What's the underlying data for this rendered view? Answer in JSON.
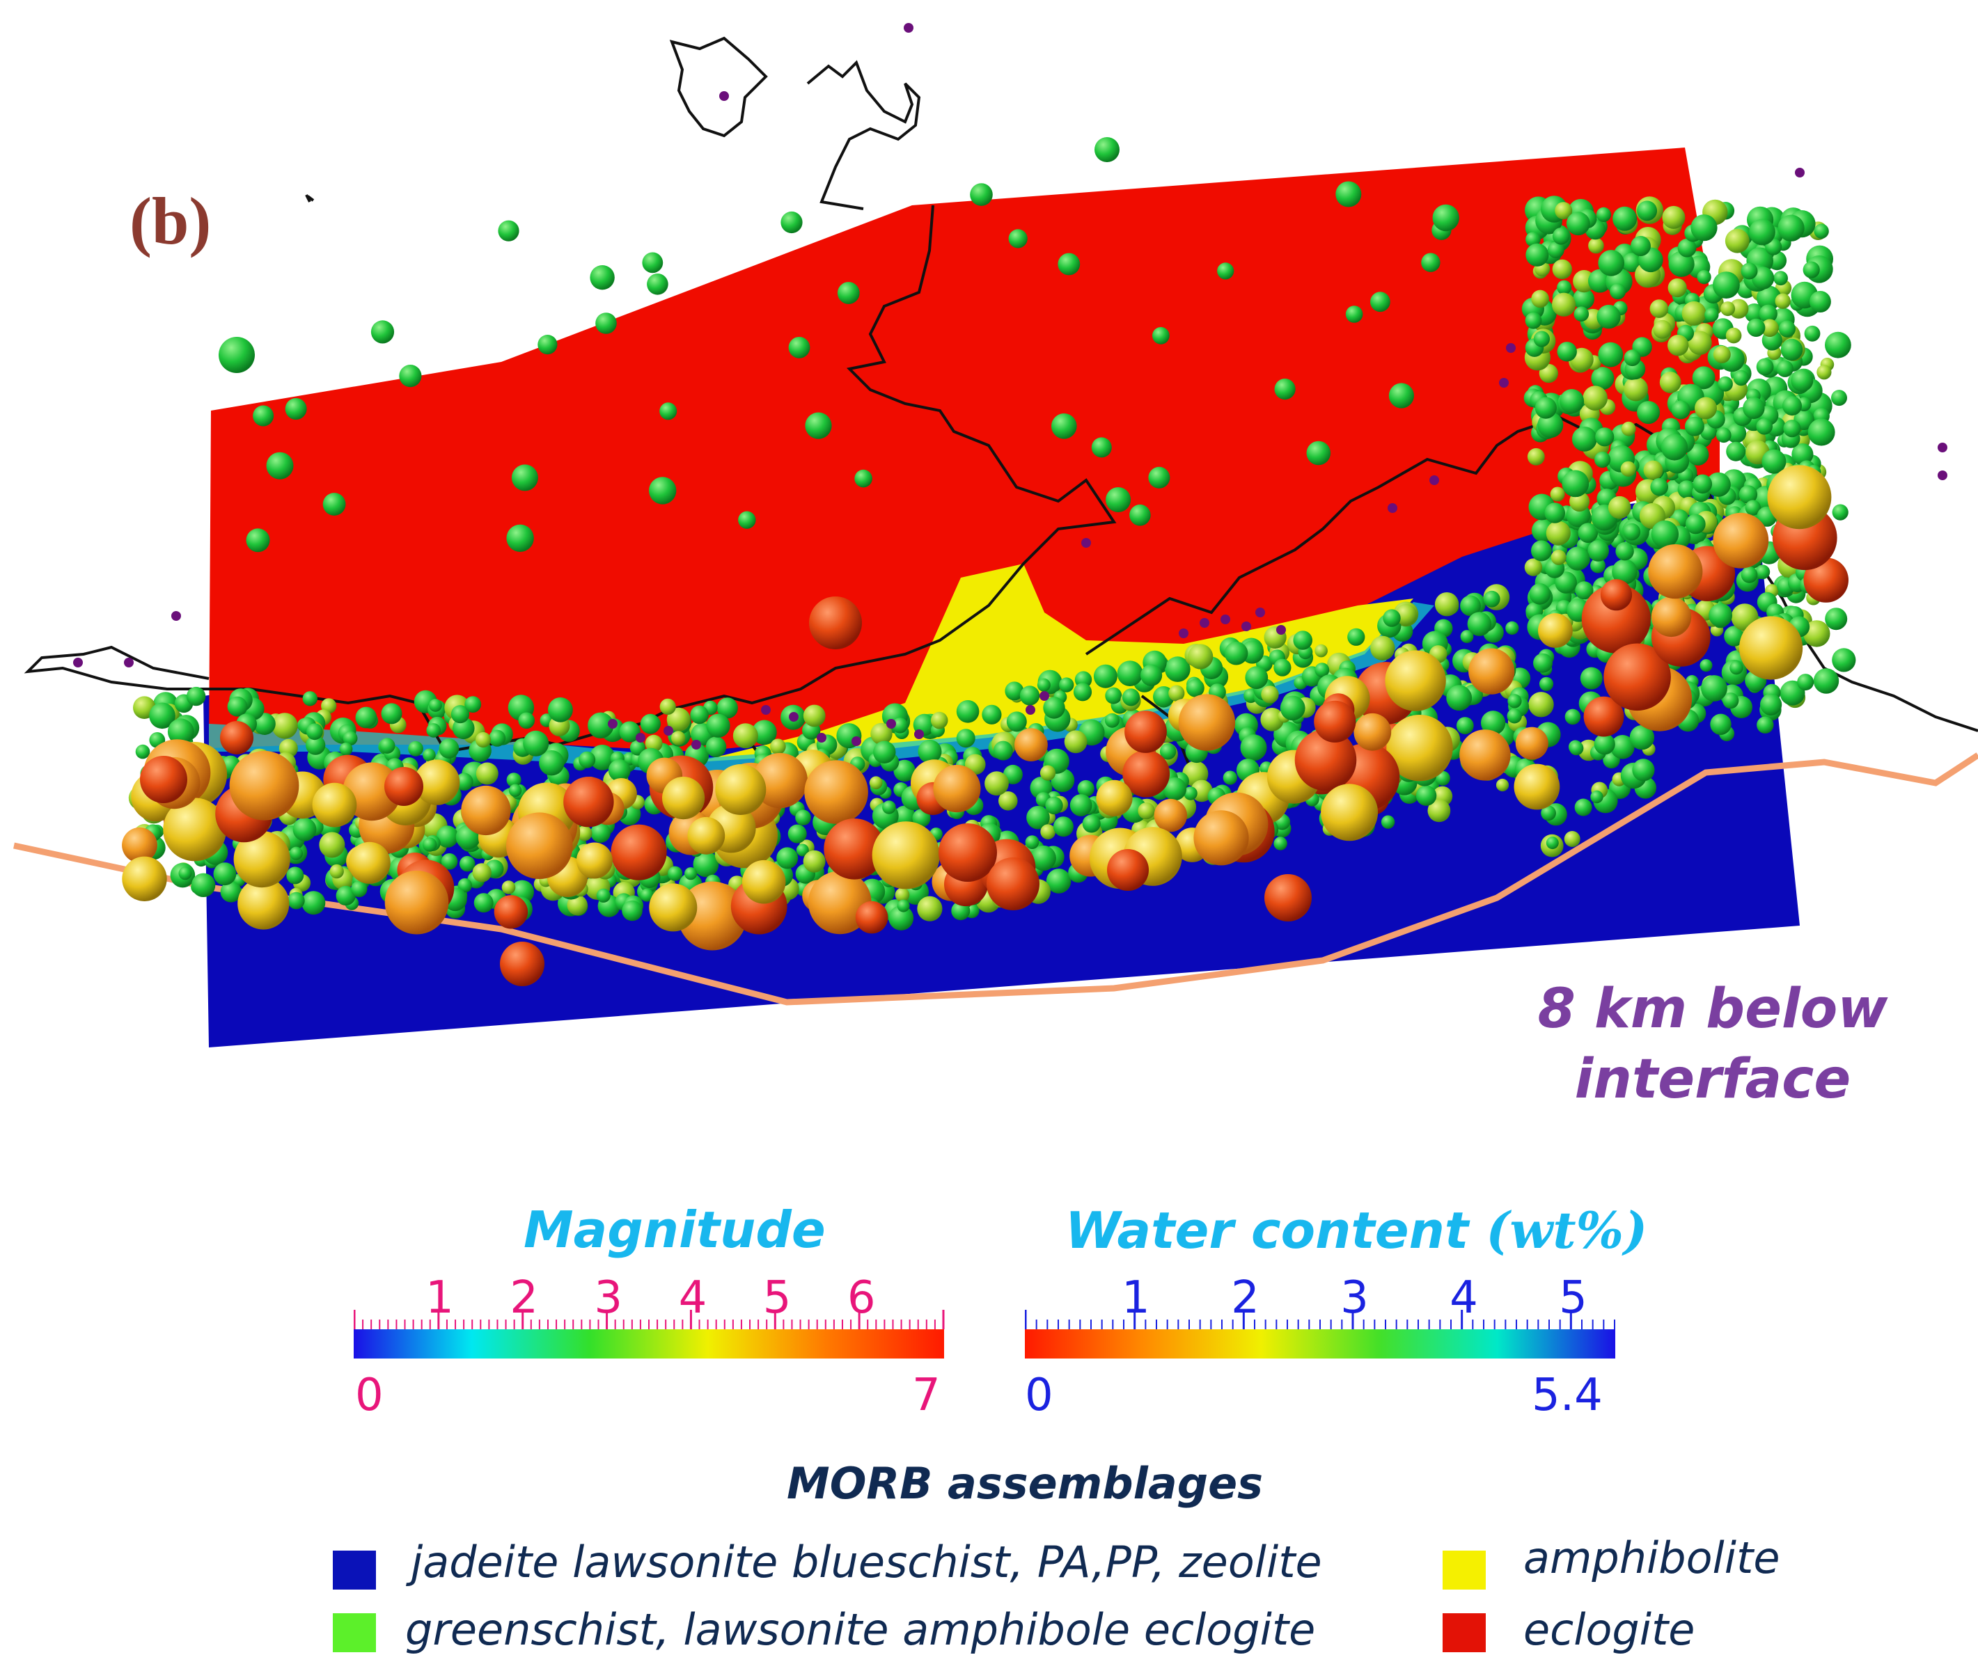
{
  "panel_label": "(b)",
  "depth_label": {
    "line1": "8 km below",
    "line2": "interface"
  },
  "magnitude_scale": {
    "title": "Magnitude",
    "min_label": "0",
    "max_label": "7",
    "ticks": [
      "1",
      "2",
      "3",
      "4",
      "5",
      "6"
    ],
    "tick_color": "#e8157a",
    "colors": [
      "#1a10e6",
      "#00e8f0",
      "#33e02a",
      "#f0f000",
      "#ff7a00",
      "#ff1a00"
    ]
  },
  "water_scale": {
    "title": "Water content ",
    "unit": "(wt%)",
    "min_label": "0",
    "max_label": "5.4",
    "ticks": [
      "1",
      "2",
      "3",
      "4",
      "5"
    ],
    "tick_color": "#1a22e0",
    "colors": [
      "#ff1a00",
      "#ff8a00",
      "#f0f000",
      "#44e028",
      "#00e8c8",
      "#1a10e6"
    ]
  },
  "legend": {
    "title": "MORB assemblages",
    "items": [
      {
        "label": "jadeite lawsonite blueschist, PA,PP, zeolite",
        "color": "#0a12b8"
      },
      {
        "label": "greenschist, lawsonite amphibole eclogite",
        "color": "#5cf02a"
      },
      {
        "label": "amphibolite",
        "color": "#f5f000"
      },
      {
        "label": "eclogite",
        "color": "#e31206"
      }
    ]
  },
  "map_colors": {
    "slab_red": "#f00c00",
    "slab_blue": "#0a08b8",
    "transition_yellow": "#f2ec00",
    "trench_line": "#f4a070",
    "coastline": "#111111",
    "volcano": "#6a0f7a"
  }
}
